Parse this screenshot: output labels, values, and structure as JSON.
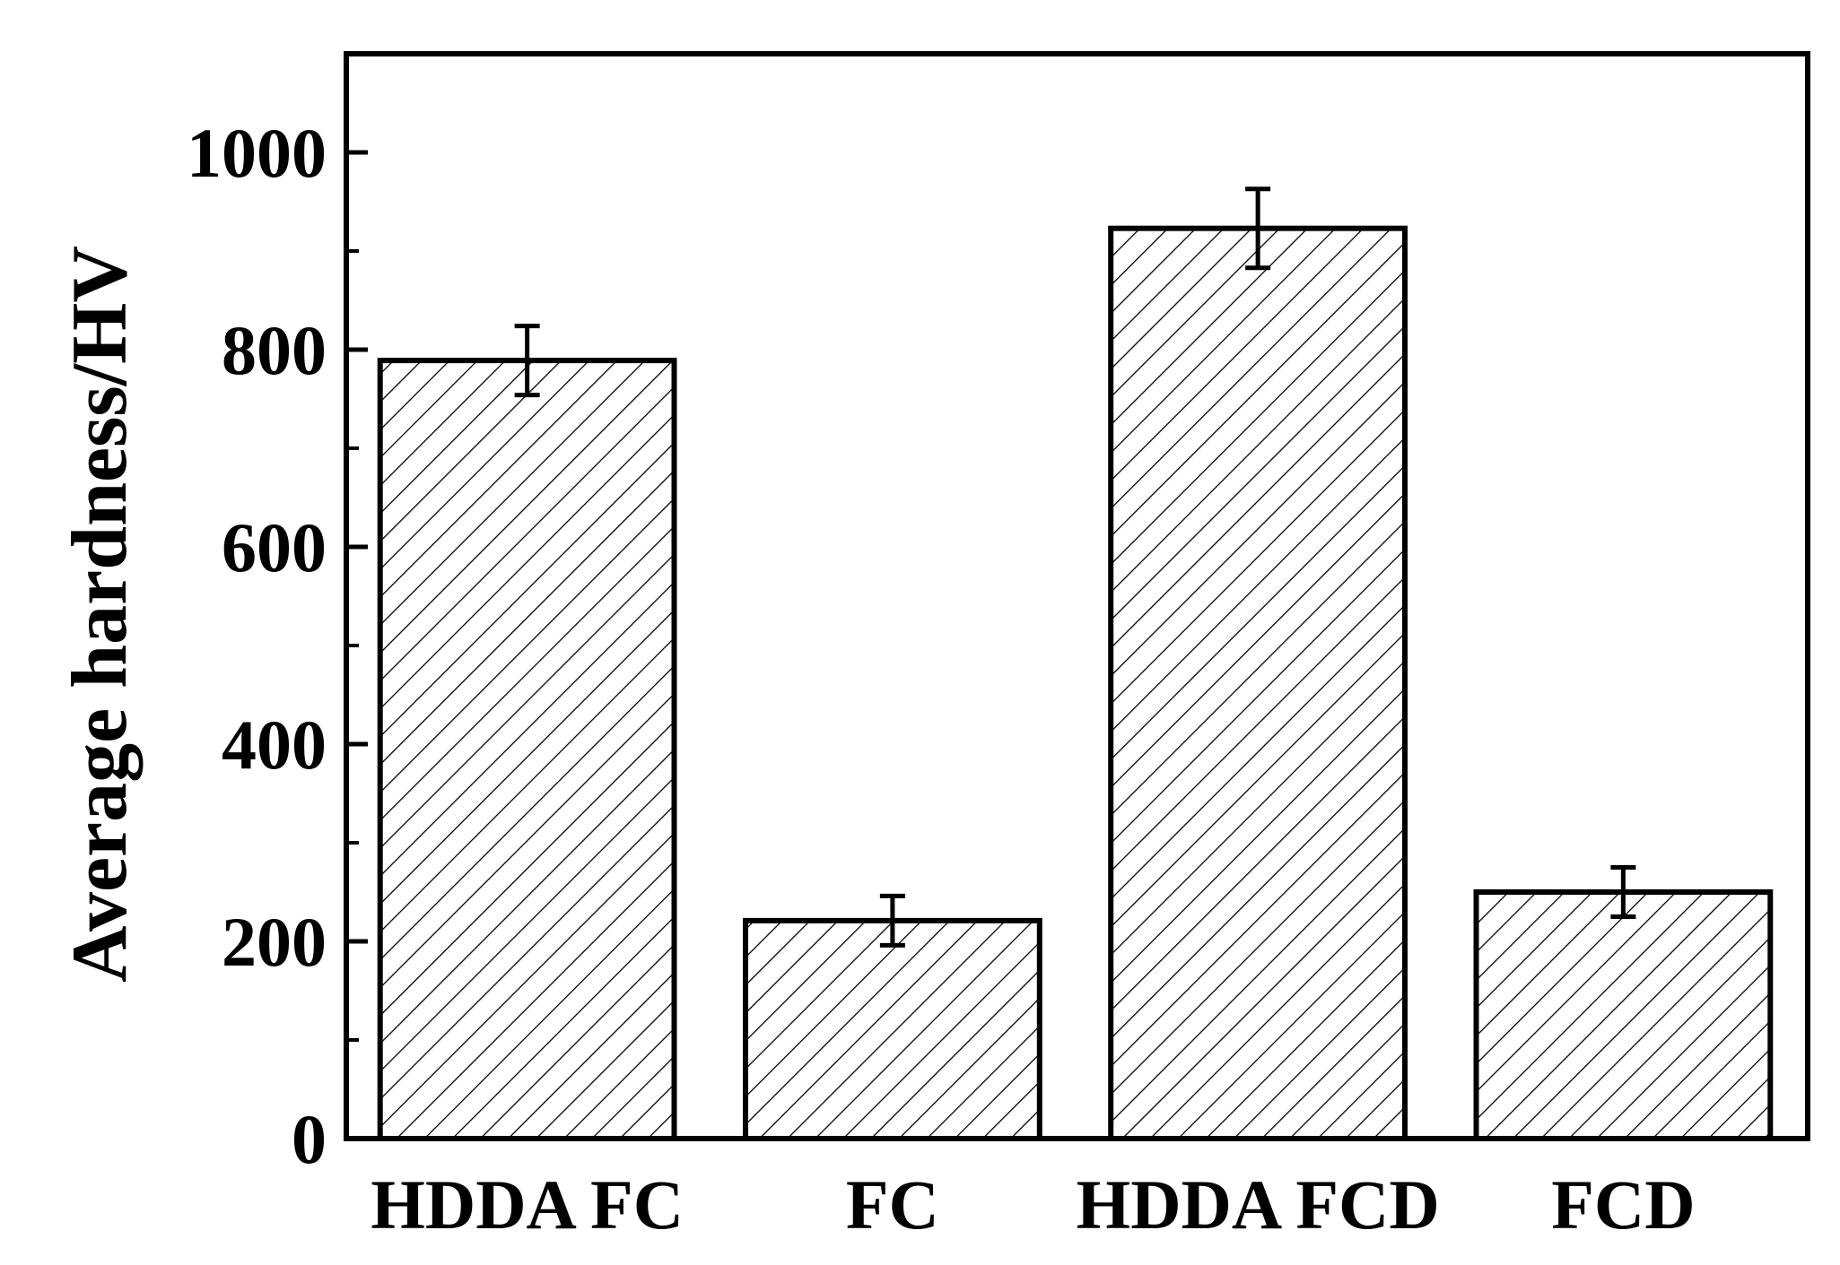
{
  "chart_data": {
    "type": "bar",
    "title": "",
    "xlabel": "",
    "ylabel": "Average hardness/HV",
    "categories": [
      "HDDA FC",
      "FC",
      "HDDA FCD",
      "FCD"
    ],
    "values": [
      789,
      221,
      923,
      250
    ],
    "errors": [
      35,
      25,
      40,
      25
    ],
    "ylim": [
      0,
      1100
    ],
    "yticks": [
      0,
      200,
      400,
      600,
      800,
      1000
    ],
    "ytick_labels": [
      "0",
      "200",
      "400",
      "600",
      "800",
      "1000"
    ],
    "minor_yticks": [
      100,
      300,
      500,
      700,
      900
    ],
    "grid": false,
    "legend": "none",
    "bar_fill": "hatched",
    "colors": {
      "bar_edge": "#000000",
      "hatch": "#000000",
      "axis": "#000000",
      "background": "#ffffff"
    }
  }
}
